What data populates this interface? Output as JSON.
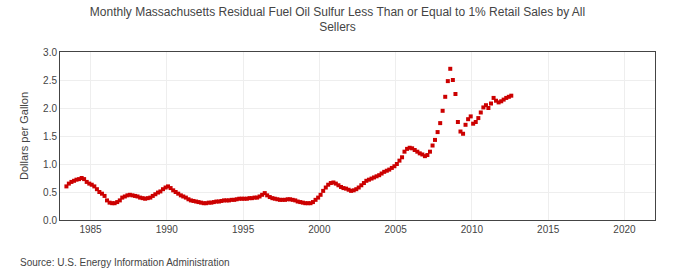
{
  "chart_data": {
    "type": "scatter",
    "title": "Monthly Massachusetts Residual Fuel Oil Sulfur Less Than or Equal to 1% Retail Sales by All\nSellers",
    "ylabel": "Dollars per Gallon",
    "annotations": [
      "Source: U.S. Energy Information Administration"
    ],
    "color": "#cc0000",
    "marker": "square",
    "grid": true,
    "xlim": [
      1983.0,
      2022.0
    ],
    "ylim": [
      0.0,
      3.0
    ],
    "xticks": [
      1985,
      1990,
      1995,
      2000,
      2005,
      2010,
      2015,
      2020
    ],
    "yticks": [
      {
        "value": 0.0,
        "label": "0.0"
      },
      0.5,
      {
        "value": 1.0,
        "label": "1.0"
      },
      1.5,
      {
        "value": 2.0,
        "label": "2.0"
      },
      2.5,
      {
        "value": 3.0,
        "label": "3.0"
      }
    ],
    "x": [
      1983.42,
      1983.58,
      1983.75,
      1983.92,
      1984.08,
      1984.25,
      1984.42,
      1984.58,
      1984.75,
      1984.92,
      1985.08,
      1985.25,
      1985.42,
      1985.58,
      1985.75,
      1985.92,
      1986.08,
      1986.25,
      1986.42,
      1986.58,
      1986.75,
      1986.92,
      1987.08,
      1987.25,
      1987.42,
      1987.58,
      1987.75,
      1987.92,
      1988.08,
      1988.25,
      1988.42,
      1988.58,
      1988.75,
      1988.92,
      1989.08,
      1989.25,
      1989.42,
      1989.58,
      1989.75,
      1989.92,
      1990.08,
      1990.25,
      1990.42,
      1990.58,
      1990.75,
      1990.92,
      1991.08,
      1991.25,
      1991.42,
      1991.58,
      1991.75,
      1991.92,
      1992.08,
      1992.25,
      1992.42,
      1992.58,
      1992.75,
      1992.92,
      1993.08,
      1993.25,
      1993.42,
      1993.58,
      1993.75,
      1993.92,
      1994.08,
      1994.25,
      1994.42,
      1994.58,
      1994.75,
      1994.92,
      1995.08,
      1995.25,
      1995.42,
      1995.58,
      1995.75,
      1995.92,
      1996.08,
      1996.25,
      1996.42,
      1996.58,
      1996.75,
      1996.92,
      1997.08,
      1997.25,
      1997.42,
      1997.58,
      1997.75,
      1997.92,
      1998.08,
      1998.25,
      1998.42,
      1998.58,
      1998.75,
      1998.92,
      1999.08,
      1999.25,
      1999.42,
      1999.58,
      1999.75,
      1999.92,
      2000.08,
      2000.25,
      2000.42,
      2000.58,
      2000.75,
      2000.92,
      2001.08,
      2001.25,
      2001.42,
      2001.58,
      2001.75,
      2001.92,
      2002.08,
      2002.25,
      2002.42,
      2002.58,
      2002.75,
      2002.92,
      2003.08,
      2003.25,
      2003.42,
      2003.58,
      2003.75,
      2003.92,
      2004.08,
      2004.25,
      2004.42,
      2004.58,
      2004.75,
      2004.92,
      2005.08,
      2005.25,
      2005.42,
      2005.58,
      2005.75,
      2005.92,
      2006.08,
      2006.25,
      2006.42,
      2006.58,
      2006.75,
      2006.92,
      2007.08,
      2007.25,
      2007.42,
      2007.58,
      2007.75,
      2007.92,
      2008.08,
      2008.25,
      2008.42,
      2008.58,
      2008.75,
      2008.92,
      2009.08,
      2009.25,
      2009.42,
      2009.58,
      2009.75,
      2009.92,
      2010.08,
      2010.25,
      2010.42,
      2010.58,
      2010.75,
      2010.92,
      2011.08,
      2011.25,
      2011.42,
      2011.58,
      2011.75,
      2011.92,
      2012.08,
      2012.25,
      2012.42,
      2012.58
    ],
    "values": [
      0.6,
      0.65,
      0.68,
      0.7,
      0.72,
      0.73,
      0.75,
      0.73,
      0.68,
      0.65,
      0.63,
      0.6,
      0.55,
      0.5,
      0.47,
      0.43,
      0.35,
      0.31,
      0.3,
      0.3,
      0.32,
      0.35,
      0.4,
      0.42,
      0.44,
      0.45,
      0.44,
      0.43,
      0.42,
      0.4,
      0.39,
      0.38,
      0.39,
      0.4,
      0.43,
      0.46,
      0.49,
      0.51,
      0.55,
      0.58,
      0.6,
      0.57,
      0.53,
      0.5,
      0.47,
      0.44,
      0.42,
      0.4,
      0.37,
      0.35,
      0.34,
      0.33,
      0.32,
      0.31,
      0.3,
      0.3,
      0.31,
      0.31,
      0.32,
      0.33,
      0.33,
      0.34,
      0.35,
      0.35,
      0.35,
      0.36,
      0.36,
      0.37,
      0.38,
      0.38,
      0.38,
      0.38,
      0.39,
      0.39,
      0.4,
      0.4,
      0.42,
      0.45,
      0.48,
      0.44,
      0.41,
      0.39,
      0.38,
      0.37,
      0.36,
      0.36,
      0.36,
      0.37,
      0.37,
      0.36,
      0.35,
      0.33,
      0.32,
      0.31,
      0.3,
      0.3,
      0.3,
      0.32,
      0.36,
      0.4,
      0.45,
      0.52,
      0.58,
      0.63,
      0.66,
      0.67,
      0.65,
      0.62,
      0.59,
      0.57,
      0.56,
      0.54,
      0.52,
      0.53,
      0.55,
      0.58,
      0.62,
      0.66,
      0.7,
      0.72,
      0.74,
      0.76,
      0.78,
      0.8,
      0.83,
      0.86,
      0.88,
      0.9,
      0.93,
      0.96,
      1.0,
      1.06,
      1.12,
      1.22,
      1.27,
      1.29,
      1.28,
      1.25,
      1.22,
      1.19,
      1.17,
      1.14,
      1.16,
      1.22,
      1.33,
      1.43,
      1.57,
      1.73,
      1.95,
      2.2,
      2.48,
      2.7,
      2.5,
      2.25,
      1.75,
      1.58,
      1.54,
      1.7,
      1.8,
      1.85,
      1.72,
      1.75,
      1.82,
      1.92,
      2.01,
      2.05,
      2.0,
      2.08,
      2.18,
      2.13,
      2.1,
      2.12,
      2.15,
      2.18,
      2.2,
      2.22
    ]
  }
}
